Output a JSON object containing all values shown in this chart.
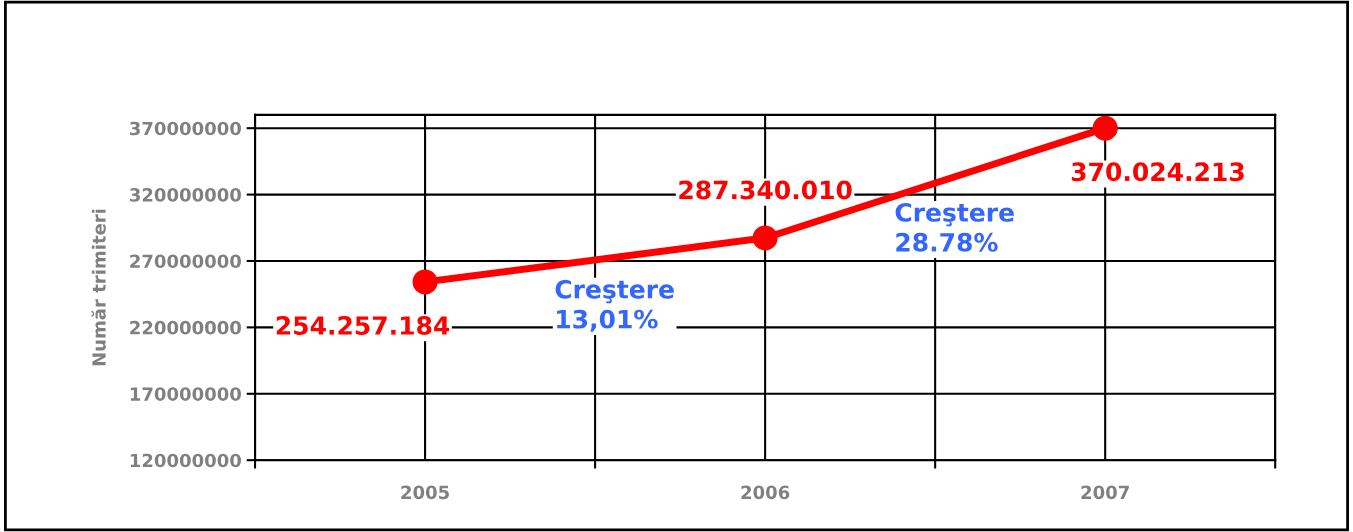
{
  "chart_data": {
    "type": "line",
    "ylabel": "Număr trimiteri",
    "categories": [
      "2005",
      "2006",
      "2007"
    ],
    "series": [
      {
        "color": "#ff0000",
        "values": [
          254257184,
          287340010,
          370024213
        ],
        "value_labels": [
          "254.257.184",
          "287.340.010",
          "370.024.213"
        ]
      }
    ],
    "ylim": [
      120000000,
      380000000
    ],
    "yticks": [
      120000000,
      170000000,
      220000000,
      270000000,
      320000000,
      370000000
    ],
    "annotations": [
      "Creştere\n13,01%",
      "Creştere\n28.78%"
    ],
    "grid": true,
    "marker": "circle",
    "line_style": "solid"
  }
}
